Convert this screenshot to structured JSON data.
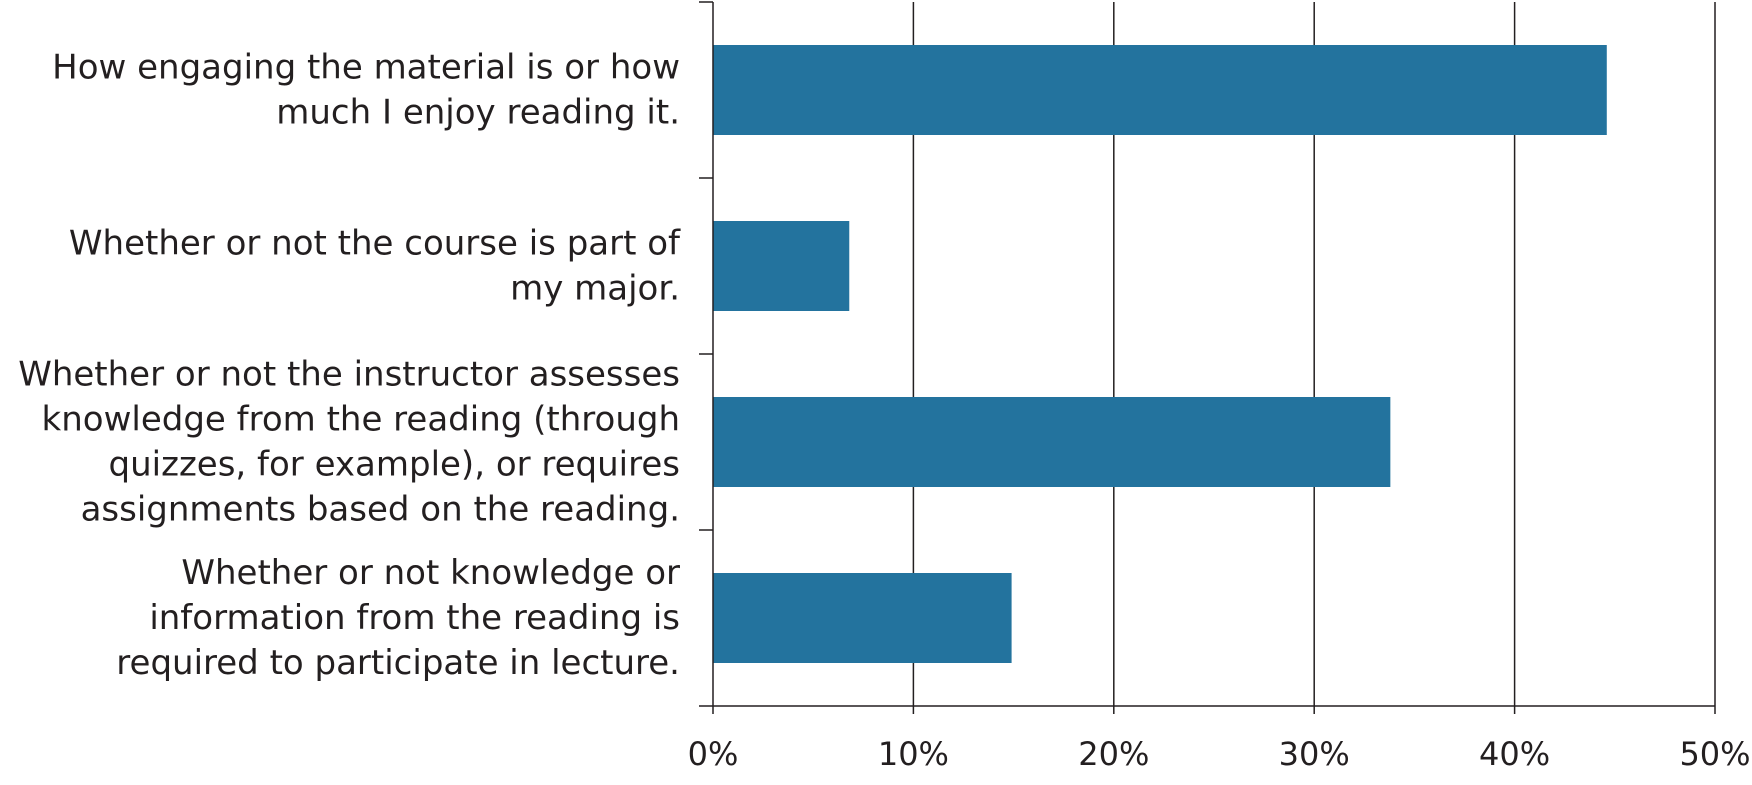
{
  "chart_data": {
    "type": "bar",
    "orientation": "horizontal",
    "categories": [
      [
        "How engaging the material is or how",
        "much I enjoy reading it."
      ],
      [
        "Whether or not the course is part of",
        "my major."
      ],
      [
        "Whether or not the instructor assesses",
        "knowledge from the reading (through",
        "quizzes, for example), or requires",
        "assignments based on the reading."
      ],
      [
        "Whether or not knowledge or",
        "information from the reading is",
        "required to participate in lecture."
      ]
    ],
    "values": [
      44.6,
      6.8,
      33.8,
      14.9
    ],
    "x_ticks": [
      "0%",
      "10%",
      "20%",
      "30%",
      "40%",
      "50%"
    ],
    "xlim": [
      0,
      50
    ],
    "grid": true,
    "bar_color": "#23739e",
    "title": "",
    "xlabel": "",
    "ylabel": ""
  }
}
